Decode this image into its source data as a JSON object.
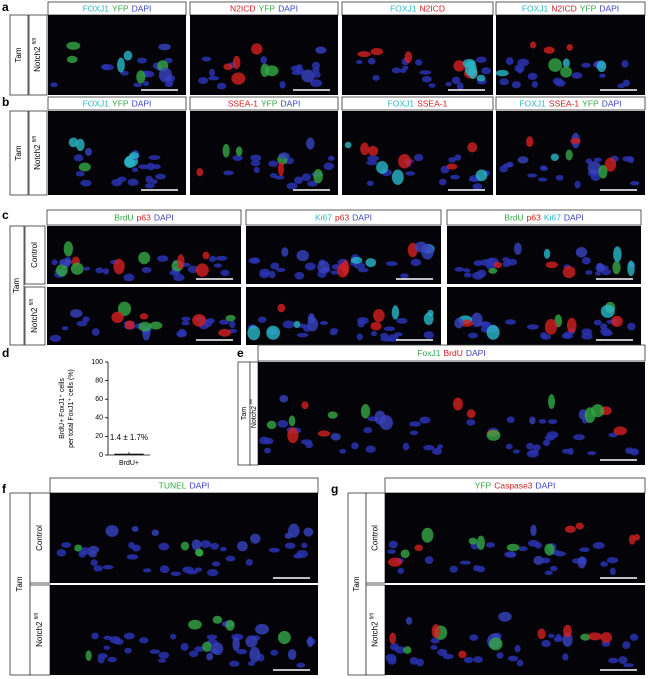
{
  "panels": [
    {
      "letter": "a",
      "tam": "Tam",
      "rows": [
        {
          "main": "Notch2",
          "sup": "fl/fl"
        }
      ],
      "headers": [
        [
          {
            "text": "FOXJ1",
            "color": "#2ab8c8"
          },
          {
            "text": "YFP",
            "color": "#35a845"
          },
          {
            "text": "DAPI",
            "color": "#3844c0"
          }
        ],
        [
          {
            "text": "N2ICD",
            "color": "#d42020"
          },
          {
            "text": "YFP",
            "color": "#35a845"
          },
          {
            "text": "DAPI",
            "color": "#3844c0"
          }
        ],
        [
          {
            "text": "FOXJ1",
            "color": "#2ab8c8"
          },
          {
            "text": "N2ICD",
            "color": "#d42020"
          }
        ],
        [
          {
            "text": "FOXJ1",
            "color": "#2ab8c8"
          },
          {
            "text": "N2ICD",
            "color": "#d42020"
          },
          {
            "text": "YFP",
            "color": "#35a845"
          },
          {
            "text": "DAPI",
            "color": "#3844c0"
          }
        ]
      ]
    },
    {
      "letter": "b",
      "tam": "Tam",
      "rows": [
        {
          "main": "Notch2",
          "sup": "fl/fl"
        }
      ],
      "headers": [
        [
          {
            "text": "FOXJ1",
            "color": "#2ab8c8"
          },
          {
            "text": "YFP",
            "color": "#35a845"
          },
          {
            "text": "DAPI",
            "color": "#3844c0"
          }
        ],
        [
          {
            "text": "SSEA-1",
            "color": "#d42020"
          },
          {
            "text": "YFP",
            "color": "#35a845"
          },
          {
            "text": "DAPI",
            "color": "#3844c0"
          }
        ],
        [
          {
            "text": "FOXJ1",
            "color": "#2ab8c8"
          },
          {
            "text": "SSEA-1",
            "color": "#d42020"
          }
        ],
        [
          {
            "text": "FOXJ1",
            "color": "#2ab8c8"
          },
          {
            "text": "SSEA-1",
            "color": "#d42020"
          },
          {
            "text": "YFP",
            "color": "#35a845"
          },
          {
            "text": "DAPI",
            "color": "#3844c0"
          }
        ]
      ]
    },
    {
      "letter": "c",
      "tam": "Tam",
      "rows": [
        {
          "main": "Control"
        },
        {
          "main": "Notch2",
          "sup": "fl/fl"
        }
      ],
      "headers": [
        [
          {
            "text": "BrdU",
            "color": "#35a845"
          },
          {
            "text": "p63",
            "color": "#d42020"
          },
          {
            "text": "DAPI",
            "color": "#3844c0"
          }
        ],
        [
          {
            "text": "Ki67",
            "color": "#2ab8c8"
          },
          {
            "text": "p63",
            "color": "#d42020"
          },
          {
            "text": "DAPI",
            "color": "#3844c0"
          }
        ],
        [
          {
            "text": "BrdU",
            "color": "#35a845"
          },
          {
            "text": "p63",
            "color": "#d42020"
          },
          {
            "text": "Ki67",
            "color": "#2ab8c8"
          },
          {
            "text": "DAPI",
            "color": "#3844c0"
          }
        ]
      ]
    },
    {
      "letter": "e",
      "tam": "Tam",
      "rows": [
        {
          "main": "Notch2",
          "sup": "fl/fl"
        }
      ],
      "headers": [
        [
          {
            "text": "FoxJ1",
            "color": "#35a845"
          },
          {
            "text": "BrdU",
            "color": "#d42020"
          },
          {
            "text": "DAPI",
            "color": "#3844c0"
          }
        ]
      ]
    },
    {
      "letter": "f",
      "tam": "Tam",
      "rows": [
        {
          "main": "Control"
        },
        {
          "main": "Notch2",
          "sup": "fl/fl"
        }
      ],
      "headers": [
        [
          {
            "text": "TUNEL",
            "color": "#35a845"
          },
          {
            "text": "DAPI",
            "color": "#3844c0"
          }
        ]
      ]
    },
    {
      "letter": "g",
      "tam": "Tam",
      "rows": [
        {
          "main": "Control"
        },
        {
          "main": "Notch2",
          "sup": "fl/fl"
        }
      ],
      "headers": [
        [
          {
            "text": "YFP",
            "color": "#35a845"
          },
          {
            "text": "Caspase3",
            "color": "#d42020"
          },
          {
            "text": "DAPI",
            "color": "#3844c0"
          }
        ]
      ]
    }
  ],
  "chart_data": {
    "type": "bar",
    "letter": "d",
    "ylabel": [
      "BrdU+ FoxJ1⁺ cells",
      "per total FoxJ1⁺ cells (%)"
    ],
    "categories": [
      "BrdU+"
    ],
    "values": [
      1.4
    ],
    "errors": [
      1.7
    ],
    "color": "#111111",
    "annotation": "1.4 ± 1.7%",
    "ylim": [
      0,
      100
    ],
    "yticks": [
      0,
      20,
      40,
      60,
      80,
      100
    ]
  }
}
